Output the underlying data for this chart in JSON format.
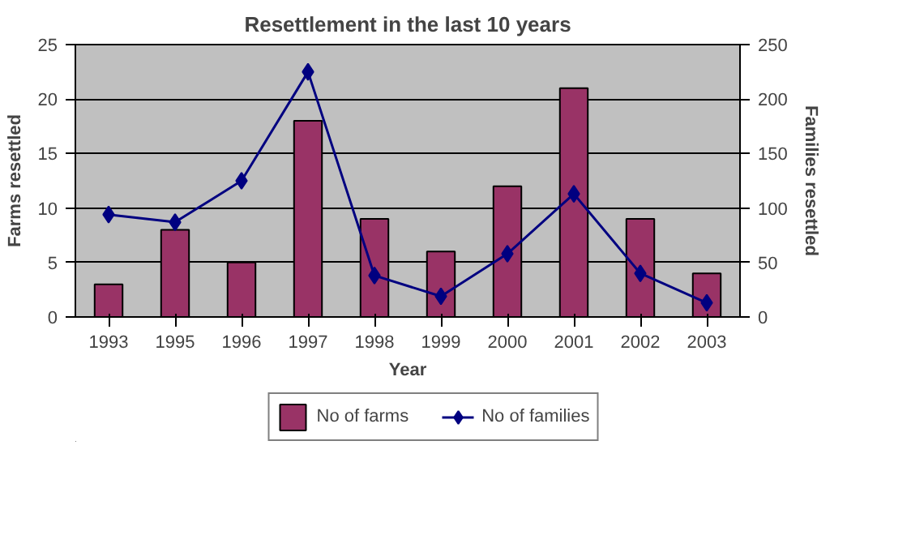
{
  "chart_data": {
    "type": "bar",
    "title": "Resettlement in the last 10 years",
    "xlabel": "Year",
    "ylabel": "Farms resettled",
    "y2label": "Families resettled",
    "categories": [
      "1993",
      "1995",
      "1996",
      "1997",
      "1998",
      "1999",
      "2000",
      "2001",
      "2002",
      "2003"
    ],
    "series": [
      {
        "name": "No of farms",
        "color": "#993366",
        "values": [
          3,
          8,
          5,
          18,
          9,
          6,
          12,
          21,
          9,
          4
        ]
      },
      {
        "name": "No of families",
        "type": "line",
        "axis": "y2",
        "color": "#000080",
        "marker": "diamond",
        "values": [
          94,
          87,
          125,
          225,
          38,
          19,
          58,
          113,
          40,
          13
        ]
      }
    ],
    "ylim": [
      0,
      25
    ],
    "yticks": [
      0,
      5,
      10,
      15,
      20,
      25
    ],
    "y2lim": [
      0,
      250
    ],
    "y2ticks": [
      0,
      50,
      100,
      150,
      200,
      250
    ],
    "grid": "y",
    "legend": "bottom"
  }
}
